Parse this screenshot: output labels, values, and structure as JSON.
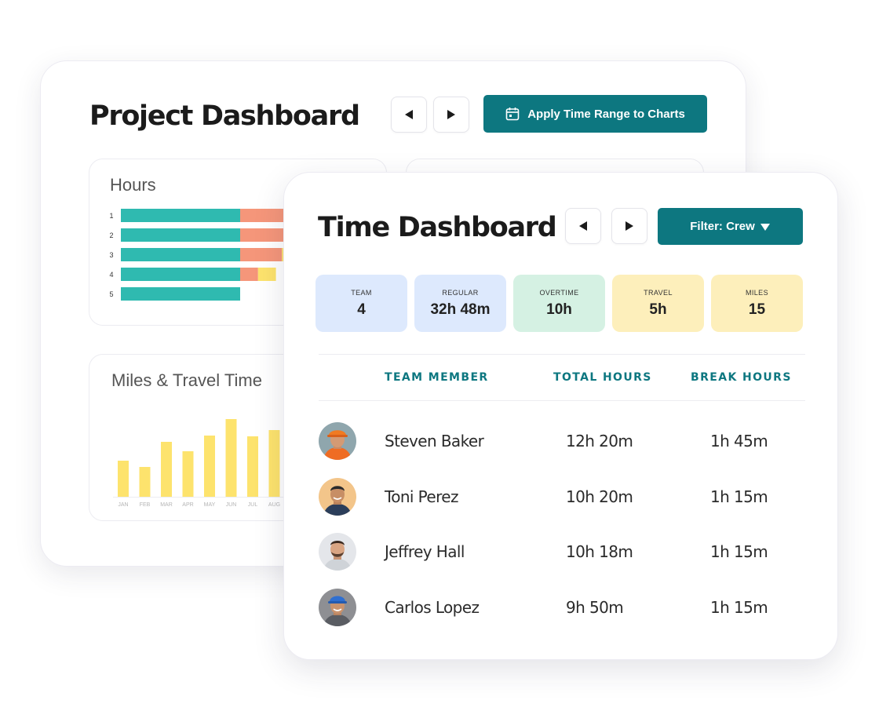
{
  "project_dashboard": {
    "title": "Project Dashboard",
    "prev_icon": "chevron-left-icon",
    "next_icon": "chevron-right-icon",
    "apply_button_label": "Apply Time Range to Charts",
    "apply_button_icon": "calendar-icon"
  },
  "colors": {
    "accent": "#0d7780",
    "hours_regular": "#2fbab0",
    "hours_overtime": "#f5967a",
    "hours_travel": "#fde36d",
    "miles_bar": "#fde36d"
  },
  "hours_chart": {
    "title": "Hours",
    "chart_data": {
      "type": "bar",
      "orientation": "horizontal",
      "stacked": true,
      "categories": [
        "1",
        "2",
        "3",
        "4",
        "5"
      ],
      "series": [
        {
          "values": [
            10,
            10,
            10,
            10,
            10
          ]
        },
        {
          "values": [
            5,
            5,
            3.5,
            1.5,
            0
          ]
        },
        {
          "values": [
            0,
            0,
            1.5,
            1.5,
            0
          ]
        }
      ]
    }
  },
  "miles_chart": {
    "title": "Miles & Travel Time",
    "chart_data": {
      "type": "bar",
      "categories": [
        "JAN",
        "FEB",
        "MAR",
        "APR",
        "MAY",
        "JUN",
        "JUL",
        "AUG"
      ],
      "values": [
        46,
        38,
        70,
        58,
        78,
        99,
        77,
        85
      ],
      "ylim": [
        0,
        100
      ]
    }
  },
  "time_dashboard": {
    "title": "Time Dashboard",
    "prev_icon": "chevron-left-icon",
    "next_icon": "chevron-right-icon",
    "filter_label": "Filter: Crew",
    "filter_icon": "caret-down-icon",
    "stats": [
      {
        "label": "TEAM",
        "value": "4",
        "color": "#dde9fd"
      },
      {
        "label": "REGULAR",
        "value": "32h 48m",
        "color": "#dde9fd"
      },
      {
        "label": "OVERTIME",
        "value": "10h",
        "color": "#d5f1e3"
      },
      {
        "label": "TRAVEL",
        "value": "5h",
        "color": "#fdefbb"
      },
      {
        "label": "MILES",
        "value": "15",
        "color": "#fdefbb"
      }
    ],
    "columns": {
      "member": "TEAM MEMBER",
      "total": "TOTAL HOURS",
      "break": "BREAK HOURS"
    },
    "rows": [
      {
        "name": "Steven Baker",
        "total": "12h 20m",
        "break": "1h 45m",
        "avatar_icon": "avatar-hardhat-icon"
      },
      {
        "name": "Toni Perez",
        "total": "10h 20m",
        "break": "1h 15m",
        "avatar_icon": "avatar-icon"
      },
      {
        "name": "Jeffrey Hall",
        "total": "10h 18m",
        "break": "1h 15m",
        "avatar_icon": "avatar-icon"
      },
      {
        "name": "Carlos Lopez",
        "total": "9h 50m",
        "break": "1h 15m",
        "avatar_icon": "avatar-cap-icon"
      }
    ]
  }
}
